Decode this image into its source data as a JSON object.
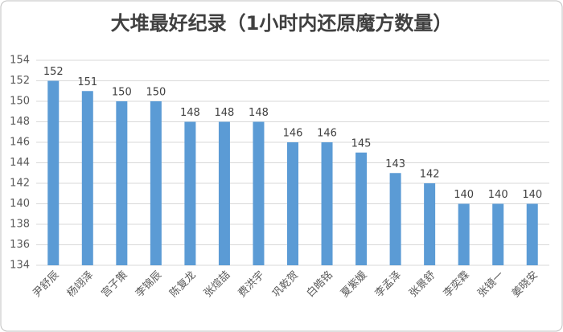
{
  "chart_data": {
    "type": "bar",
    "title": "大堆最好纪录（1小时内还原魔方数量）",
    "categories": [
      "尹舒辰",
      "杨翊泽",
      "宫子策",
      "李锦辰",
      "陈复龙",
      "张煊喆",
      "费洪宇",
      "巩乾贺",
      "白皓铭",
      "夏紫媛",
      "李孟泽",
      "张景舒",
      "李奕霖",
      "张镜一",
      "姜晓安"
    ],
    "values": [
      152,
      151,
      150,
      150,
      148,
      148,
      148,
      146,
      146,
      145,
      143,
      142,
      140,
      140,
      140
    ],
    "color": "#5b9bd5",
    "ylim": [
      134,
      154
    ],
    "yticks": [
      134,
      136,
      138,
      140,
      142,
      144,
      146,
      148,
      150,
      152,
      154
    ],
    "grid": true
  }
}
